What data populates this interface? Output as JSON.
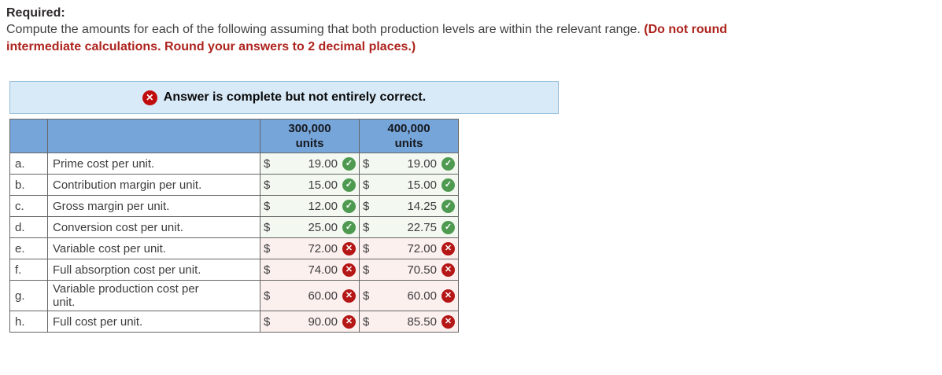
{
  "instruction": {
    "heading": "Required:",
    "text": "Compute the amounts for each of the following assuming that both production levels are within the relevant range. ",
    "emphasis_line1": "(Do not round",
    "emphasis_line2": "intermediate calculations. Round your answers to 2 decimal places.)"
  },
  "banner": {
    "icon": "x-circle-icon",
    "text": "Answer is complete but not entirely correct."
  },
  "icons": {
    "check": "✓",
    "cross": "✕"
  },
  "table": {
    "columns": [
      {
        "line1": "300,000",
        "line2": "units"
      },
      {
        "line1": "400,000",
        "line2": "units"
      }
    ],
    "rows": [
      {
        "letter": "a.",
        "label": "Prime cost per unit.",
        "currency": "$",
        "v300": "19.00",
        "v300_status": "correct",
        "v400": "19.00",
        "v400_status": "correct"
      },
      {
        "letter": "b.",
        "label": "Contribution margin per unit.",
        "currency": "$",
        "v300": "15.00",
        "v300_status": "correct",
        "v400": "15.00",
        "v400_status": "correct"
      },
      {
        "letter": "c.",
        "label": "Gross margin per unit.",
        "currency": "$",
        "v300": "12.00",
        "v300_status": "correct",
        "v400": "14.25",
        "v400_status": "correct"
      },
      {
        "letter": "d.",
        "label": "Conversion cost per unit.",
        "currency": "$",
        "v300": "25.00",
        "v300_status": "correct",
        "v400": "22.75",
        "v400_status": "correct"
      },
      {
        "letter": "e.",
        "label": "Variable cost per unit.",
        "currency": "$",
        "v300": "72.00",
        "v300_status": "incorrect",
        "v400": "72.00",
        "v400_status": "incorrect"
      },
      {
        "letter": "f.",
        "label": "Full absorption cost per unit.",
        "currency": "$",
        "v300": "74.00",
        "v300_status": "incorrect",
        "v400": "70.50",
        "v400_status": "incorrect"
      },
      {
        "letter": "g.",
        "label": "Variable production cost per unit.",
        "currency": "$",
        "v300": "60.00",
        "v300_status": "incorrect",
        "v400": "60.00",
        "v400_status": "incorrect"
      },
      {
        "letter": "h.",
        "label": "Full cost per unit.",
        "currency": "$",
        "v300": "90.00",
        "v300_status": "incorrect",
        "v400": "85.50",
        "v400_status": "incorrect"
      }
    ]
  },
  "colors": {
    "header_blue": "#76a5da",
    "banner_bg": "#d8eaf8",
    "banner_border": "#93bcd9",
    "banner_icon_red": "#c00c0c",
    "check_green": "#4f9a51",
    "cross_red": "#b51616",
    "correct_cell_bg": "#f3f8f1",
    "incorrect_cell_bg": "#fcf0ef",
    "emphasis_red_text": "#ad231d",
    "table_border_gray": "#666666"
  }
}
